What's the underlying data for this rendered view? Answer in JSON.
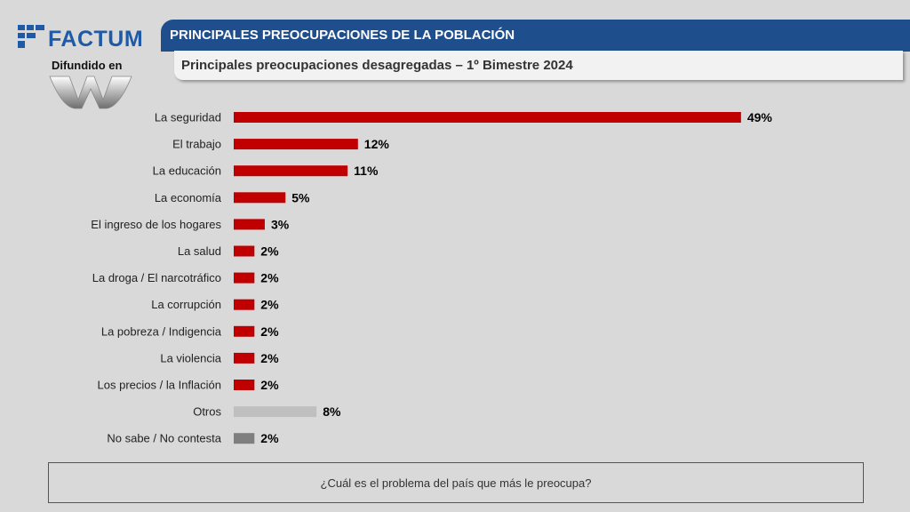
{
  "brand": {
    "name": "FACTUM",
    "disseminated_by": "Difundido en"
  },
  "header": {
    "title": "PRINCIPALES PREOCUPACIONES DE LA POBLACIÓN",
    "subtitle": "Principales preocupaciones desagregadas – 1º Bimestre 2024"
  },
  "question": "¿Cuál es el problema del país que más le preocupa?",
  "colors": {
    "primary_bar": "#c00000",
    "otros_bar": "#bfbfbf",
    "nsnc_bar": "#7f7f7f",
    "header_blue": "#1f4e8c",
    "logo_blue": "#1f5aa6"
  },
  "chart_data": {
    "type": "bar",
    "orientation": "horizontal",
    "title": "Principales preocupaciones desagregadas – 1º Bimestre 2024",
    "xlabel": "",
    "ylabel": "",
    "xlim": [
      0,
      50
    ],
    "unit": "%",
    "categories": [
      "La seguridad",
      "El trabajo",
      "La educación",
      "La economía",
      "El ingreso de los hogares",
      "La salud",
      "La droga / El narcotráfico",
      "La corrupción",
      "La pobreza / Indigencia",
      "La violencia",
      "Los precios / la Inflación",
      "Otros",
      "No sabe / No contesta"
    ],
    "values": [
      49,
      12,
      11,
      5,
      3,
      2,
      2,
      2,
      2,
      2,
      2,
      8,
      2
    ],
    "display_values": [
      49,
      12,
      11,
      5,
      3,
      2,
      2,
      2,
      2,
      2,
      2,
      8,
      2
    ],
    "bar_colors": [
      "#c00000",
      "#c00000",
      "#c00000",
      "#c00000",
      "#c00000",
      "#c00000",
      "#c00000",
      "#c00000",
      "#c00000",
      "#c00000",
      "#c00000",
      "#bfbfbf",
      "#7f7f7f"
    ]
  }
}
